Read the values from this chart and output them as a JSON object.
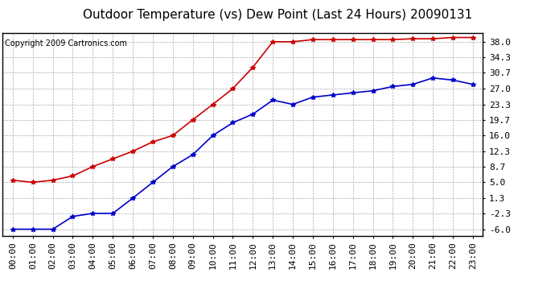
{
  "title": "Outdoor Temperature (vs) Dew Point (Last 24 Hours) 20090131",
  "copyright": "Copyright 2009 Cartronics.com",
  "x_labels": [
    "00:00",
    "01:00",
    "02:00",
    "03:00",
    "04:00",
    "05:00",
    "06:00",
    "07:00",
    "08:00",
    "09:00",
    "10:00",
    "11:00",
    "12:00",
    "13:00",
    "14:00",
    "15:00",
    "16:00",
    "17:00",
    "18:00",
    "19:00",
    "20:00",
    "21:00",
    "22:00",
    "23:00"
  ],
  "temp_data": [
    5.5,
    5.0,
    5.5,
    6.5,
    8.7,
    10.5,
    12.3,
    14.5,
    16.0,
    19.7,
    23.3,
    27.0,
    32.0,
    38.0,
    38.0,
    38.5,
    38.5,
    38.5,
    38.5,
    38.5,
    38.7,
    38.7,
    39.0,
    39.0
  ],
  "dew_data": [
    -6.0,
    -6.0,
    -6.0,
    -3.0,
    -2.3,
    -2.3,
    1.3,
    5.0,
    8.7,
    11.5,
    16.0,
    19.0,
    21.0,
    24.3,
    23.3,
    25.0,
    25.5,
    26.0,
    26.5,
    27.5,
    28.0,
    29.5,
    29.0,
    28.0
  ],
  "temp_color": "#cc0000",
  "dew_color": "#0000cc",
  "bg_color": "#ffffff",
  "plot_bg_color": "#ffffff",
  "grid_color": "#aaaaaa",
  "ytick_labels": [
    "38.0",
    "34.3",
    "30.7",
    "27.0",
    "23.3",
    "19.7",
    "16.0",
    "12.3",
    "8.7",
    "5.0",
    "1.3",
    "-2.3",
    "-6.0"
  ],
  "ytick_values": [
    38.0,
    34.3,
    30.7,
    27.0,
    23.3,
    19.7,
    16.0,
    12.3,
    8.7,
    5.0,
    1.3,
    -2.3,
    -6.0
  ],
  "ylim_min": -7.5,
  "ylim_max": 40.0,
  "title_fontsize": 11,
  "copyright_fontsize": 7,
  "tick_fontsize": 8,
  "marker": "*",
  "marker_size": 4,
  "linewidth": 1.2
}
